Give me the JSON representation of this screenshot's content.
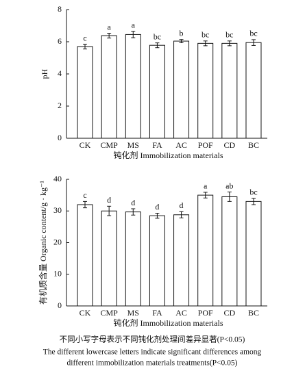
{
  "chart_data": [
    {
      "type": "bar",
      "ylabel": "pH",
      "xlabel": "钝化剂 Immobilization materials",
      "categories": [
        "CK",
        "CMP",
        "MS",
        "FA",
        "AC",
        "POF",
        "CD",
        "BC"
      ],
      "values": [
        5.7,
        6.38,
        6.45,
        5.78,
        6.04,
        5.9,
        5.9,
        5.95
      ],
      "errors": [
        0.15,
        0.15,
        0.2,
        0.15,
        0.1,
        0.15,
        0.15,
        0.18
      ],
      "annotations": [
        "c",
        "a",
        "a",
        "bc",
        "b",
        "bc",
        "bc",
        "bc"
      ],
      "color": "#ffffff",
      "ylim": [
        0,
        8
      ],
      "yticks": [
        0,
        2,
        4,
        6,
        8
      ],
      "grid": false
    },
    {
      "type": "bar",
      "ylabel": "有机质含量 Organic content/g · kg⁻¹",
      "xlabel": "钝化剂 Immobilization materials",
      "categories": [
        "CK",
        "CMP",
        "MS",
        "FA",
        "AC",
        "POF",
        "CD",
        "BC"
      ],
      "values": [
        32.0,
        30.0,
        29.7,
        28.5,
        28.8,
        35.0,
        34.5,
        33.0
      ],
      "errors": [
        1.0,
        1.5,
        1.0,
        0.8,
        1.0,
        0.9,
        1.5,
        1.0
      ],
      "annotations": [
        "c",
        "d",
        "d",
        "d",
        "d",
        "a",
        "ab",
        "bc"
      ],
      "color": "#ffffff",
      "ylim": [
        0,
        40
      ],
      "yticks": [
        0,
        10,
        20,
        30,
        40
      ],
      "grid": false
    }
  ],
  "caption": [
    "不同小写字母表示不同钝化剂处理间差异显著(P<0.05)",
    "The different lowercase letters indicate significant differences among",
    "different immobilization materials treatments(P<0.05)"
  ]
}
